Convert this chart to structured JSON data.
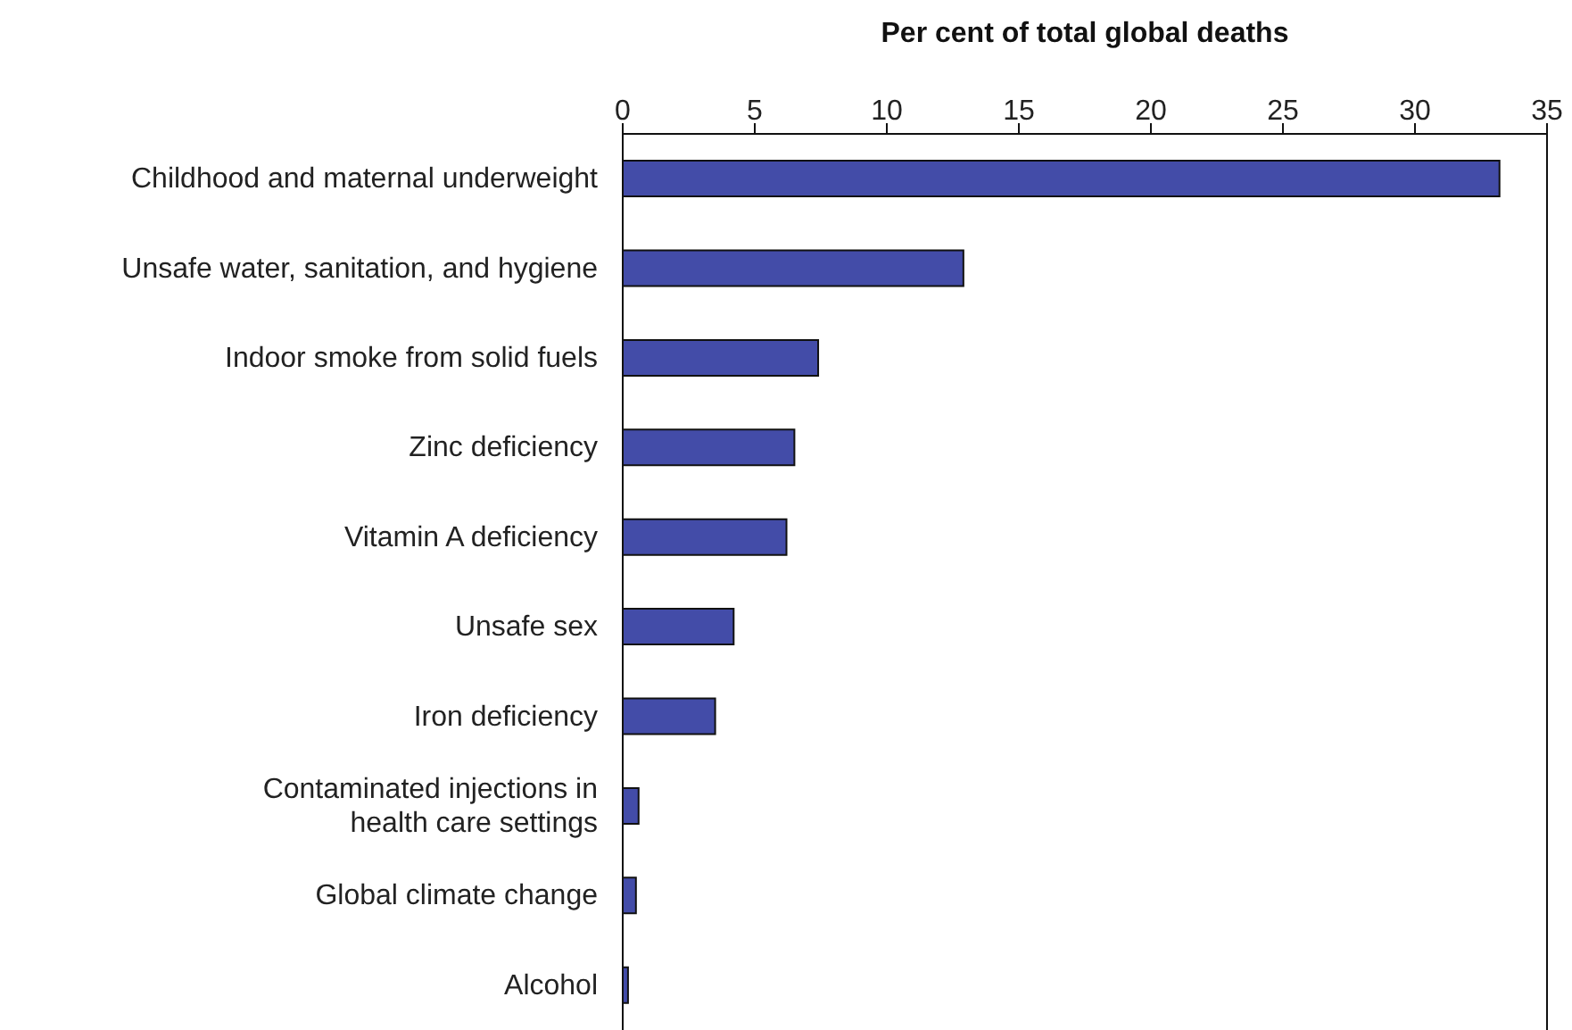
{
  "chart_data": {
    "type": "bar",
    "orientation": "horizontal",
    "xlabel": "Per cent of total global deaths",
    "categories": [
      "Childhood and maternal underweight",
      "Unsafe water, sanitation, and hygiene",
      "Indoor smoke from solid fuels",
      "Zinc deficiency",
      "Vitamin A deficiency",
      "Unsafe sex",
      "Iron deficiency",
      "Contaminated injections in health care settings",
      "Global climate change",
      "Alcohol"
    ],
    "values": [
      33.2,
      12.9,
      7.4,
      6.5,
      6.2,
      4.2,
      3.5,
      0.6,
      0.5,
      0.2
    ],
    "color": "#434ca8",
    "xlim": [
      0,
      35
    ],
    "xticks": [
      0,
      5,
      10,
      15,
      20,
      25,
      30,
      35
    ],
    "grid": false,
    "legend": false
  }
}
